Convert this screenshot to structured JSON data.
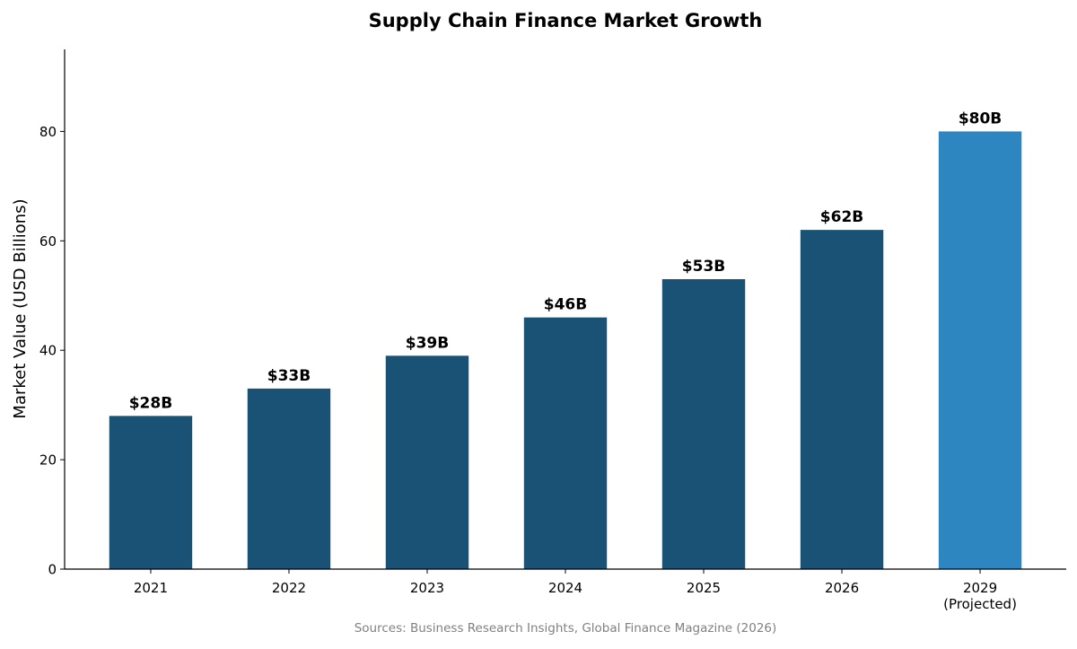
{
  "chart_data": {
    "type": "bar",
    "title": "Supply Chain Finance Market Growth",
    "xlabel": "",
    "ylabel": "Market Value (USD Billions)",
    "categories": [
      "2021",
      "2022",
      "2023",
      "2024",
      "2025",
      "2026",
      "2029\n(Projected)"
    ],
    "values": [
      28,
      33,
      39,
      46,
      53,
      62,
      80
    ],
    "data_labels": [
      "$28B",
      "$33B",
      "$39B",
      "$46B",
      "$53B",
      "$62B",
      "$80B"
    ],
    "ylim": [
      0,
      95
    ],
    "yticks": [
      0,
      20,
      40,
      60,
      80
    ],
    "grid": false,
    "colors": [
      "#1a5276",
      "#1a5276",
      "#1a5276",
      "#1a5276",
      "#1a5276",
      "#1a5276",
      "#2e86c1"
    ],
    "source_note": "Sources: Business Research Insights, Global Finance Magazine (2026)"
  }
}
